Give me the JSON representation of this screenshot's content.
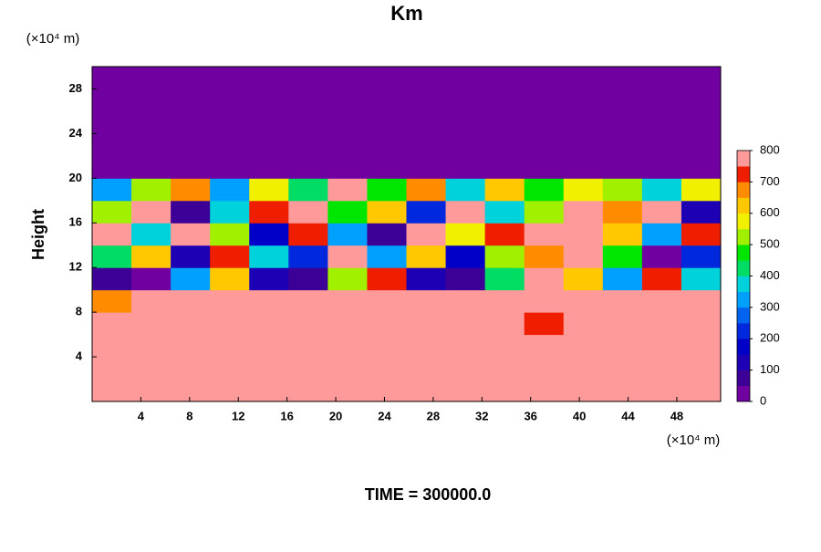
{
  "chart_data": {
    "type": "contour",
    "title": "Km",
    "ylabel": "Height",
    "xunit": "(×10⁴ m)",
    "yunit": "(×10⁴ m)",
    "footer": "TIME = 300000.0",
    "xlim": [
      0,
      51.6
    ],
    "ylim": [
      0,
      30
    ],
    "xticks": [
      4,
      8,
      12,
      16,
      20,
      24,
      28,
      32,
      36,
      40,
      44,
      48
    ],
    "yticks": [
      4,
      8,
      12,
      16,
      20,
      24,
      28
    ],
    "clim": [
      0,
      800
    ],
    "cticks": [
      0,
      100,
      200,
      300,
      400,
      500,
      600,
      700,
      800
    ],
    "colors": [
      "#7000a0",
      "#3c0096",
      "#1e00b4",
      "#0000c8",
      "#0028dc",
      "#0064f0",
      "#00a0ff",
      "#00d2dc",
      "#00dc64",
      "#00e600",
      "#a0f000",
      "#f0f000",
      "#ffc800",
      "#ff8c00",
      "#f01e00",
      "#ff9a9a"
    ],
    "z": [
      [
        800,
        800,
        800,
        800,
        800,
        800,
        800,
        800,
        800,
        800,
        800,
        800,
        800,
        800,
        800,
        800
      ],
      [
        800,
        800,
        800,
        800,
        800,
        800,
        800,
        800,
        800,
        800,
        800,
        800,
        750,
        800,
        800,
        800
      ],
      [
        800,
        750,
        800,
        800,
        800,
        800,
        800,
        800,
        800,
        800,
        800,
        800,
        800,
        800,
        750,
        800
      ],
      [
        800,
        800,
        750,
        800,
        800,
        800,
        800,
        800,
        800,
        800,
        800,
        700,
        800,
        750,
        800,
        750
      ],
      [
        650,
        800,
        800,
        750,
        800,
        800,
        800,
        800,
        800,
        800,
        800,
        800,
        800,
        800,
        800,
        800
      ],
      [
        50,
        0,
        300,
        600,
        100,
        50,
        500,
        700,
        100,
        50,
        400,
        800,
        600,
        300,
        700,
        350
      ],
      [
        400,
        600,
        100,
        700,
        350,
        200,
        800,
        300,
        600,
        150,
        500,
        650,
        800,
        450,
        0,
        200
      ],
      [
        800,
        350,
        800,
        500,
        150,
        700,
        300,
        50,
        800,
        550,
        700,
        800,
        750,
        600,
        300,
        700
      ],
      [
        500,
        800,
        50,
        350,
        700,
        800,
        450,
        600,
        200,
        750,
        350,
        500,
        800,
        650,
        800,
        100
      ],
      [
        300,
        500,
        650,
        300,
        550,
        400,
        800,
        450,
        650,
        350,
        600,
        450,
        550,
        500,
        350,
        550
      ],
      [
        0,
        0,
        0,
        0,
        0,
        0,
        0,
        0,
        0,
        0,
        0,
        0,
        0,
        0,
        0,
        0
      ],
      [
        0,
        0,
        0,
        0,
        0,
        0,
        0,
        0,
        0,
        0,
        0,
        0,
        0,
        0,
        0,
        0
      ],
      [
        0,
        0,
        0,
        0,
        0,
        0,
        0,
        0,
        0,
        0,
        0,
        0,
        0,
        0,
        0,
        0
      ],
      [
        0,
        0,
        0,
        0,
        0,
        0,
        0,
        0,
        0,
        0,
        0,
        0,
        0,
        0,
        0,
        0
      ],
      [
        0,
        0,
        0,
        0,
        0,
        0,
        0,
        0,
        0,
        0,
        0,
        0,
        0,
        0,
        0,
        0
      ]
    ]
  }
}
